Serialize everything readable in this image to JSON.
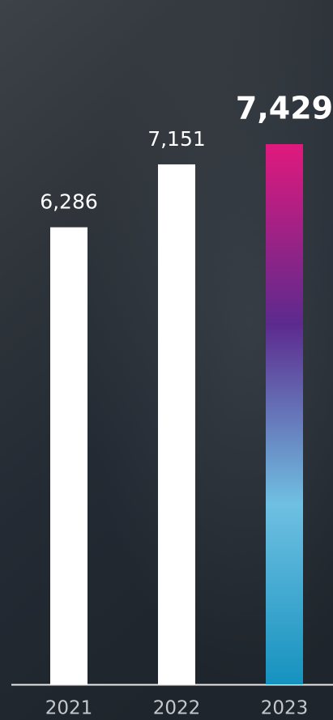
{
  "chart_data": {
    "type": "bar",
    "categories": [
      "2021",
      "2022",
      "2023"
    ],
    "values": [
      6286,
      7151,
      7429
    ],
    "value_labels": [
      "6,286",
      "7,151",
      "7,429"
    ],
    "color": "#ffffff",
    "highlight_gradient": [
      "#e0197d",
      "#5c2a8e",
      "#6fc0e2",
      "#1592bf"
    ]
  }
}
